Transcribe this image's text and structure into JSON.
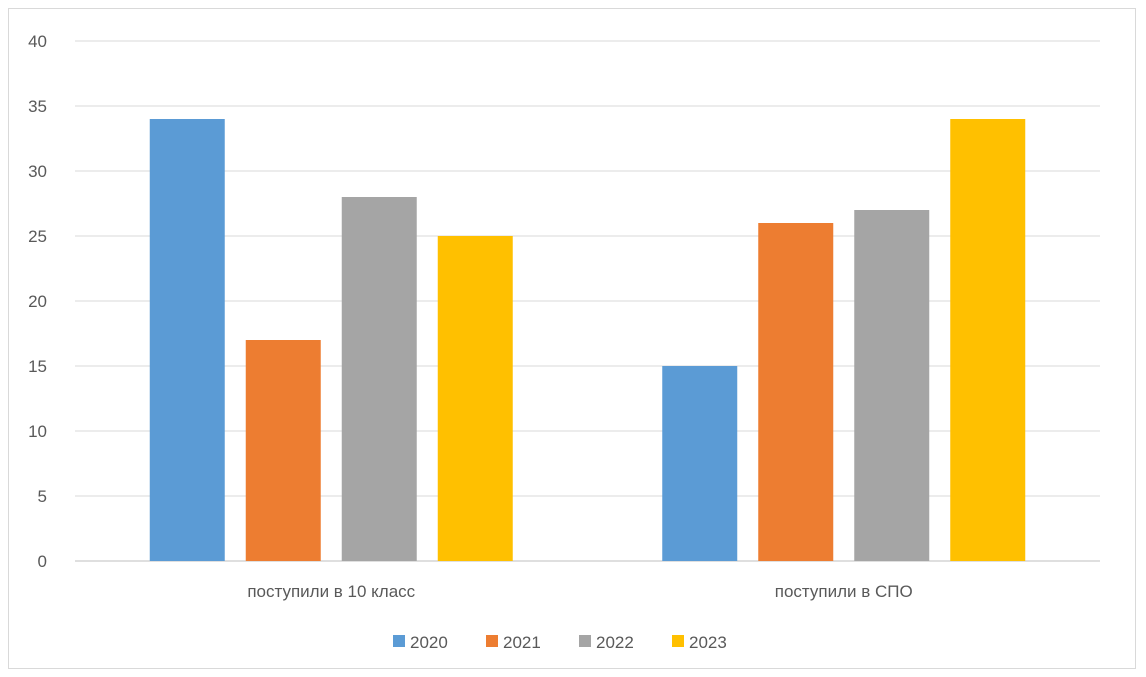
{
  "chart_data": {
    "type": "bar",
    "categories": [
      "поступили в 10 класс",
      "поступили в СПО"
    ],
    "series": [
      {
        "name": "2020",
        "values": [
          34,
          15
        ],
        "color": "#5B9BD5"
      },
      {
        "name": "2021",
        "values": [
          17,
          26
        ],
        "color": "#ED7D31"
      },
      {
        "name": "2022",
        "values": [
          28,
          27
        ],
        "color": "#A5A5A5"
      },
      {
        "name": "2023",
        "values": [
          25,
          34
        ],
        "color": "#FFC000"
      }
    ],
    "title": "",
    "xlabel": "",
    "ylabel": "",
    "ylim": [
      0,
      40
    ],
    "yticks": [
      "0",
      "5",
      "10",
      "15",
      "20",
      "25",
      "30",
      "35",
      "40"
    ],
    "grid": true,
    "legend_position": "bottom"
  }
}
